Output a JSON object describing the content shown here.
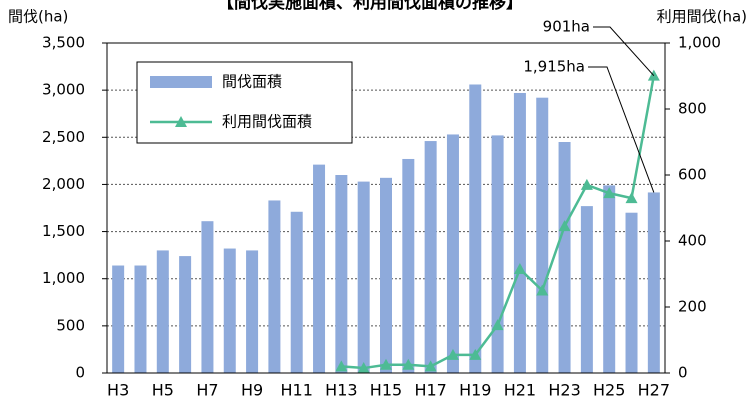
{
  "chart_data": {
    "type": "bar-line",
    "title": "【間伐実施面積、利用間伐面積の推移】",
    "y_label": "間伐(ha)",
    "y2_label": "利用間伐(ha)",
    "categories": [
      "H3",
      null,
      "H5",
      null,
      "H7",
      null,
      "H9",
      null,
      "H11",
      null,
      "H13",
      null,
      "H15",
      null,
      "H17",
      null,
      "H19",
      null,
      "H21",
      null,
      "H23",
      null,
      "H25",
      null,
      "H27"
    ],
    "series": [
      {
        "name": "間伐面積",
        "type": "bar",
        "color": "#8eaadb",
        "values": [
          1140,
          1140,
          1300,
          1240,
          1610,
          1320,
          1300,
          1830,
          1710,
          2210,
          2100,
          2030,
          2070,
          2270,
          2460,
          2530,
          3060,
          2520,
          2970,
          2920,
          2450,
          1770,
          1990,
          1700,
          1915
        ]
      },
      {
        "name": "利用間伐面積",
        "type": "line",
        "axis": "y2",
        "color": "#4dbb94",
        "values": [
          null,
          null,
          null,
          null,
          null,
          null,
          null,
          null,
          null,
          null,
          20,
          15,
          25,
          25,
          20,
          55,
          55,
          145,
          315,
          250,
          445,
          570,
          545,
          530,
          901
        ]
      }
    ],
    "ylim": [
      0,
      3500
    ],
    "yticks": [
      0,
      500,
      {
        "value": 1000,
        "label": "1,000"
      },
      {
        "value": 1500,
        "label": "1,500"
      },
      {
        "value": 2000,
        "label": "2,000"
      },
      {
        "value": 2500,
        "label": "2,500"
      },
      {
        "value": 3000,
        "label": "3,000"
      },
      {
        "value": 3500,
        "label": "3,500"
      }
    ],
    "y2lim": [
      0,
      1000
    ],
    "y2ticks": [
      0,
      200,
      400,
      600,
      800,
      {
        "value": 1000,
        "label": "1,000"
      }
    ],
    "grid": true,
    "legend": "upper left",
    "annotations": [
      {
        "text": "901ha",
        "series": 1,
        "index": 24
      },
      {
        "text": "1,915ha",
        "series": 0,
        "index": 24
      }
    ]
  }
}
